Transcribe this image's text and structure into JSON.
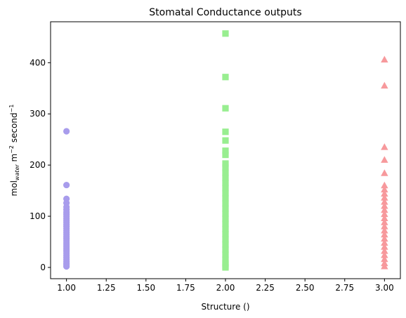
{
  "chart_data": {
    "type": "scatter",
    "title": "Stomatal Conductance outputs",
    "xlabel": "Structure ()",
    "ylabel": {
      "base": "mol",
      "sub": "water",
      "mid": " m",
      "sup1": "−2",
      "tail": " second",
      "sup2": "−1"
    },
    "xlim": [
      0.9,
      3.1
    ],
    "ylim": [
      -22,
      480
    ],
    "xticks": [
      "1.00",
      "1.25",
      "1.50",
      "1.75",
      "2.00",
      "2.25",
      "2.50",
      "2.75",
      "3.00"
    ],
    "yticks": [
      "0",
      "100",
      "200",
      "300",
      "400"
    ],
    "grid": false,
    "series": [
      {
        "marker": "circle",
        "color": "#a89cec",
        "x": 1.0,
        "values": [
          266,
          161,
          134,
          126,
          118,
          113,
          108,
          104,
          100,
          96,
          92,
          88,
          84,
          80,
          76,
          72,
          68,
          64,
          60,
          56,
          52,
          48,
          44,
          40,
          36,
          32,
          28,
          24,
          20,
          16,
          12,
          8,
          5,
          2
        ]
      },
      {
        "marker": "square",
        "color": "#98ee90",
        "x": 2.0,
        "values": [
          457,
          372,
          311,
          265,
          248,
          228,
          220,
          203,
          195,
          185,
          175,
          165,
          155,
          145,
          135,
          125,
          115,
          105,
          95,
          85,
          75,
          65,
          55,
          45,
          35,
          25,
          15,
          8,
          3,
          0
        ]
      },
      {
        "marker": "triangle",
        "color": "#f7999c",
        "x": 3.0,
        "values": [
          406,
          355,
          235,
          210,
          184,
          160,
          152,
          144,
          136,
          128,
          120,
          112,
          104,
          96,
          88,
          80,
          72,
          64,
          56,
          48,
          40,
          32,
          24,
          16,
          8,
          2
        ]
      }
    ]
  }
}
